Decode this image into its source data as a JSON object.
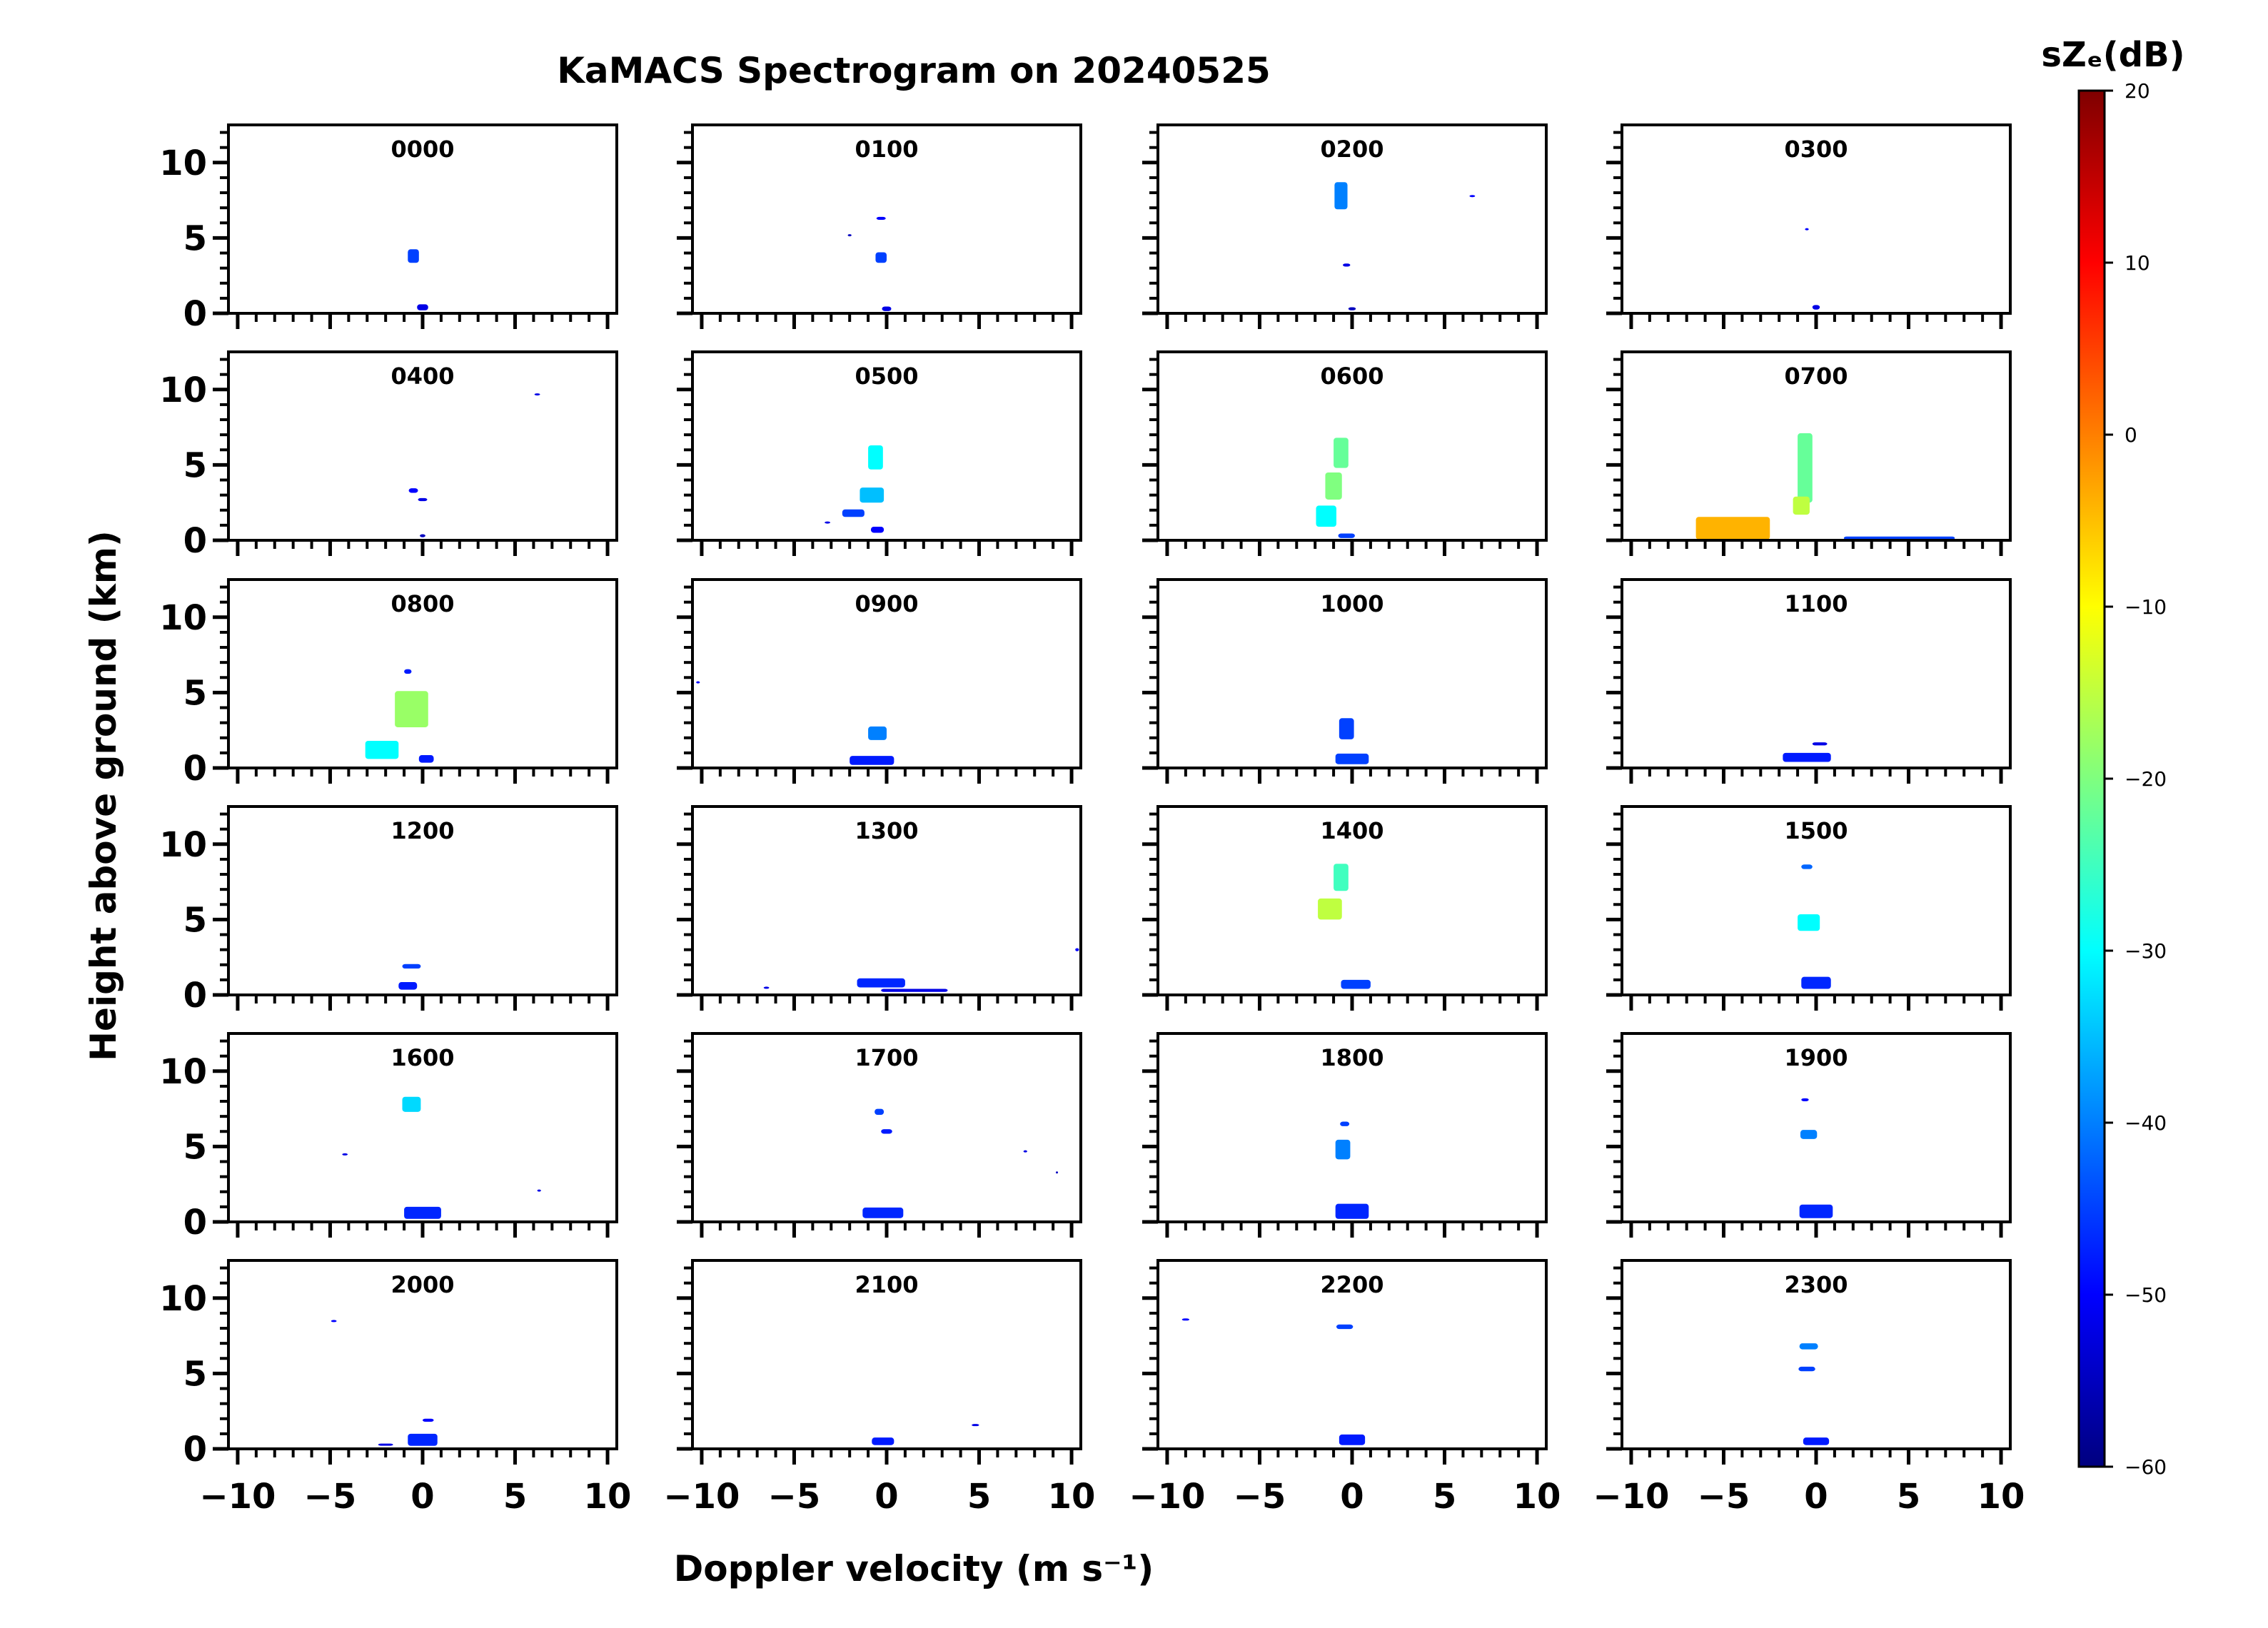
{
  "chart_data": {
    "type": "heatmap",
    "title": "KaMACS Spectrogram on 20240525",
    "xlabel": "Doppler velocity (m s⁻¹)",
    "ylabel": "Height above ground (km)",
    "xlim": [
      -10.5,
      10.5
    ],
    "ylim": [
      0,
      12.5
    ],
    "x_ticks": [
      -10,
      -5,
      0,
      5,
      10
    ],
    "x_tick_labels": [
      "−10",
      "−5",
      "0",
      "5",
      "10"
    ],
    "y_ticks": [
      0,
      5,
      10
    ],
    "y_tick_labels": [
      "0",
      "5",
      "10"
    ],
    "grid": false,
    "layout": "6 rows x 4 columns of hourly panels",
    "colorbar": {
      "label": "sZₑ(dB)",
      "min": -60,
      "max": 20,
      "ticks": [
        20,
        10,
        0,
        -10,
        -20,
        -30,
        -40,
        -50,
        -60
      ],
      "tick_labels": [
        "20",
        "10",
        "0",
        "−10",
        "−20",
        "−30",
        "−40",
        "−50",
        "−60"
      ],
      "colormap": "jet",
      "colors": [
        "#00007f",
        "#0000ff",
        "#007fff",
        "#00ffff",
        "#7fff7f",
        "#ffff00",
        "#ff7f00",
        "#ff0000",
        "#7f0000"
      ]
    },
    "panels": [
      {
        "label": "0000",
        "features": [
          {
            "v": -0.5,
            "h": 3.8,
            "dv": 0.6,
            "dh": 0.9,
            "db": -45
          },
          {
            "v": 0,
            "h": 0.4,
            "dv": 0.6,
            "dh": 0.4,
            "db": -52
          }
        ]
      },
      {
        "label": "0100",
        "features": [
          {
            "v": -0.3,
            "h": 3.7,
            "dv": 0.6,
            "dh": 0.7,
            "db": -45
          },
          {
            "v": -0.3,
            "h": 6.3,
            "dv": 0.5,
            "dh": 0.2,
            "db": -50
          },
          {
            "v": 0,
            "h": 0.3,
            "dv": 0.5,
            "dh": 0.3,
            "db": -52
          },
          {
            "v": -2,
            "h": 5.2,
            "dv": 0.2,
            "dh": 0.1,
            "db": -55
          }
        ]
      },
      {
        "label": "0200",
        "features": [
          {
            "v": -0.6,
            "h": 7.8,
            "dv": 0.7,
            "dh": 1.8,
            "db": -40
          },
          {
            "v": -0.3,
            "h": 3.2,
            "dv": 0.4,
            "dh": 0.2,
            "db": -52
          },
          {
            "v": 0,
            "h": 0.3,
            "dv": 0.4,
            "dh": 0.2,
            "db": -55
          },
          {
            "v": 6.5,
            "h": 7.8,
            "dv": 0.3,
            "dh": 0.1,
            "db": -50
          }
        ]
      },
      {
        "label": "0300",
        "features": [
          {
            "v": -0.5,
            "h": 5.6,
            "dv": 0.2,
            "dh": 0.1,
            "db": -50
          },
          {
            "v": 0,
            "h": 0.4,
            "dv": 0.4,
            "dh": 0.3,
            "db": -52
          }
        ]
      },
      {
        "label": "0400",
        "features": [
          {
            "v": -0.5,
            "h": 3.3,
            "dv": 0.5,
            "dh": 0.3,
            "db": -50
          },
          {
            "v": 0,
            "h": 2.7,
            "dv": 0.5,
            "dh": 0.2,
            "db": -52
          },
          {
            "v": 0,
            "h": 0.3,
            "dv": 0.3,
            "dh": 0.2,
            "db": -55
          },
          {
            "v": 6.2,
            "h": 9.7,
            "dv": 0.3,
            "dh": 0.1,
            "db": -52
          }
        ]
      },
      {
        "label": "0500",
        "features": [
          {
            "v": -0.6,
            "h": 5.5,
            "dv": 0.8,
            "dh": 1.6,
            "db": -30
          },
          {
            "v": -0.8,
            "h": 3.0,
            "dv": 1.3,
            "dh": 1.0,
            "db": -35
          },
          {
            "v": -1.8,
            "h": 1.8,
            "dv": 1.2,
            "dh": 0.5,
            "db": -45
          },
          {
            "v": -0.5,
            "h": 0.7,
            "dv": 0.7,
            "dh": 0.4,
            "db": -50
          },
          {
            "v": -3.2,
            "h": 1.2,
            "dv": 0.3,
            "dh": 0.1,
            "db": -52
          }
        ]
      },
      {
        "label": "0600",
        "features": [
          {
            "v": -0.6,
            "h": 5.8,
            "dv": 0.8,
            "dh": 2.0,
            "db": -22
          },
          {
            "v": -1.0,
            "h": 3.6,
            "dv": 0.9,
            "dh": 1.8,
            "db": -20
          },
          {
            "v": -1.4,
            "h": 1.6,
            "dv": 1.1,
            "dh": 1.4,
            "db": -30
          },
          {
            "v": -0.3,
            "h": 0.3,
            "dv": 0.9,
            "dh": 0.3,
            "db": -45
          }
        ]
      },
      {
        "label": "0700",
        "features": [
          {
            "v": -0.6,
            "h": 4.8,
            "dv": 0.8,
            "dh": 4.6,
            "db": -22
          },
          {
            "v": -0.8,
            "h": 2.3,
            "dv": 0.9,
            "dh": 1.2,
            "db": -15
          },
          {
            "v": -4.5,
            "h": 0.8,
            "dv": 4.0,
            "dh": 1.5,
            "db": -4
          },
          {
            "v": 4.5,
            "h": 0.15,
            "dv": 6.0,
            "dh": 0.2,
            "db": -45
          }
        ]
      },
      {
        "label": "0800",
        "features": [
          {
            "v": -0.6,
            "h": 3.9,
            "dv": 1.8,
            "dh": 2.4,
            "db": -18
          },
          {
            "v": -2.2,
            "h": 1.2,
            "dv": 1.8,
            "dh": 1.2,
            "db": -30
          },
          {
            "v": -0.8,
            "h": 6.4,
            "dv": 0.4,
            "dh": 0.3,
            "db": -48
          },
          {
            "v": 0.2,
            "h": 0.6,
            "dv": 0.8,
            "dh": 0.5,
            "db": -48
          }
        ]
      },
      {
        "label": "0900",
        "features": [
          {
            "v": -0.5,
            "h": 2.3,
            "dv": 1.0,
            "dh": 0.9,
            "db": -40
          },
          {
            "v": -0.8,
            "h": 0.5,
            "dv": 2.4,
            "dh": 0.6,
            "db": -48
          },
          {
            "v": -10.2,
            "h": 5.7,
            "dv": 0.2,
            "dh": 0.1,
            "db": -50
          }
        ]
      },
      {
        "label": "1000",
        "features": [
          {
            "v": -0.3,
            "h": 2.6,
            "dv": 0.8,
            "dh": 1.4,
            "db": -45
          },
          {
            "v": 0,
            "h": 0.6,
            "dv": 1.8,
            "dh": 0.7,
            "db": -45
          }
        ]
      },
      {
        "label": "1100",
        "features": [
          {
            "v": -0.5,
            "h": 0.7,
            "dv": 2.6,
            "dh": 0.6,
            "db": -48
          },
          {
            "v": 0.2,
            "h": 1.6,
            "dv": 0.8,
            "dh": 0.2,
            "db": -52
          }
        ]
      },
      {
        "label": "1200",
        "features": [
          {
            "v": -0.6,
            "h": 1.9,
            "dv": 1.0,
            "dh": 0.3,
            "db": -45
          },
          {
            "v": -0.8,
            "h": 0.6,
            "dv": 1.0,
            "dh": 0.5,
            "db": -48
          }
        ]
      },
      {
        "label": "1300",
        "features": [
          {
            "v": -0.3,
            "h": 0.8,
            "dv": 2.6,
            "dh": 0.6,
            "db": -47
          },
          {
            "v": 1.5,
            "h": 0.3,
            "dv": 3.6,
            "dh": 0.2,
            "db": -52
          },
          {
            "v": -6.5,
            "h": 0.5,
            "dv": 0.3,
            "dh": 0.1,
            "db": -52
          },
          {
            "v": 10.3,
            "h": 3.0,
            "dv": 0.2,
            "dh": 0.2,
            "db": -50
          }
        ]
      },
      {
        "label": "1400",
        "features": [
          {
            "v": -0.6,
            "h": 7.8,
            "dv": 0.8,
            "dh": 1.8,
            "db": -25
          },
          {
            "v": -1.2,
            "h": 5.7,
            "dv": 1.3,
            "dh": 1.4,
            "db": -15
          },
          {
            "v": 0.2,
            "h": 0.7,
            "dv": 1.6,
            "dh": 0.6,
            "db": -45
          }
        ]
      },
      {
        "label": "1500",
        "features": [
          {
            "v": -0.4,
            "h": 4.8,
            "dv": 1.2,
            "dh": 1.1,
            "db": -30
          },
          {
            "v": -0.5,
            "h": 8.5,
            "dv": 0.6,
            "dh": 0.3,
            "db": -42
          },
          {
            "v": 0,
            "h": 0.8,
            "dv": 1.6,
            "dh": 0.8,
            "db": -47
          }
        ]
      },
      {
        "label": "1600",
        "features": [
          {
            "v": -0.6,
            "h": 7.8,
            "dv": 1.0,
            "dh": 1.0,
            "db": -33
          },
          {
            "v": 0,
            "h": 0.6,
            "dv": 2.0,
            "dh": 0.8,
            "db": -47
          },
          {
            "v": -4.2,
            "h": 4.5,
            "dv": 0.3,
            "dh": 0.1,
            "db": -52
          },
          {
            "v": 6.3,
            "h": 2.1,
            "dv": 0.2,
            "dh": 0.1,
            "db": -52
          }
        ]
      },
      {
        "label": "1700",
        "features": [
          {
            "v": -0.4,
            "h": 7.3,
            "dv": 0.5,
            "dh": 0.4,
            "db": -45
          },
          {
            "v": 0,
            "h": 6.0,
            "dv": 0.6,
            "dh": 0.3,
            "db": -48
          },
          {
            "v": -0.2,
            "h": 0.6,
            "dv": 2.2,
            "dh": 0.7,
            "db": -47
          },
          {
            "v": 7.5,
            "h": 4.7,
            "dv": 0.2,
            "dh": 0.1,
            "db": -52
          },
          {
            "v": 9.2,
            "h": 3.3,
            "dv": 0.1,
            "dh": 0.1,
            "db": -55
          }
        ]
      },
      {
        "label": "1800",
        "features": [
          {
            "v": -0.5,
            "h": 4.8,
            "dv": 0.8,
            "dh": 1.3,
            "db": -40
          },
          {
            "v": -0.4,
            "h": 6.5,
            "dv": 0.5,
            "dh": 0.3,
            "db": -45
          },
          {
            "v": 0,
            "h": 0.7,
            "dv": 1.8,
            "dh": 1.0,
            "db": -47
          }
        ]
      },
      {
        "label": "1900",
        "features": [
          {
            "v": -0.4,
            "h": 5.8,
            "dv": 0.9,
            "dh": 0.6,
            "db": -40
          },
          {
            "v": -0.6,
            "h": 8.1,
            "dv": 0.4,
            "dh": 0.2,
            "db": -50
          },
          {
            "v": 0,
            "h": 0.7,
            "dv": 1.8,
            "dh": 0.9,
            "db": -47
          }
        ]
      },
      {
        "label": "2000",
        "features": [
          {
            "v": 0,
            "h": 0.6,
            "dv": 1.6,
            "dh": 0.8,
            "db": -47
          },
          {
            "v": 0.3,
            "h": 1.9,
            "dv": 0.6,
            "dh": 0.2,
            "db": -50
          },
          {
            "v": -4.8,
            "h": 8.5,
            "dv": 0.3,
            "dh": 0.1,
            "db": -50
          },
          {
            "v": -2,
            "h": 0.3,
            "dv": 0.8,
            "dh": 0.1,
            "db": -52
          }
        ]
      },
      {
        "label": "2100",
        "features": [
          {
            "v": -0.2,
            "h": 0.5,
            "dv": 1.2,
            "dh": 0.5,
            "db": -48
          },
          {
            "v": 4.8,
            "h": 1.6,
            "dv": 0.4,
            "dh": 0.1,
            "db": -52
          }
        ]
      },
      {
        "label": "2200",
        "features": [
          {
            "v": -0.4,
            "h": 8.1,
            "dv": 0.9,
            "dh": 0.3,
            "db": -45
          },
          {
            "v": 0,
            "h": 0.6,
            "dv": 1.4,
            "dh": 0.7,
            "db": -48
          },
          {
            "v": -9.0,
            "h": 8.6,
            "dv": 0.4,
            "dh": 0.1,
            "db": -50
          }
        ]
      },
      {
        "label": "2300",
        "features": [
          {
            "v": -0.4,
            "h": 6.8,
            "dv": 1.0,
            "dh": 0.4,
            "db": -40
          },
          {
            "v": -0.5,
            "h": 5.3,
            "dv": 0.9,
            "dh": 0.3,
            "db": -45
          },
          {
            "v": 0,
            "h": 0.5,
            "dv": 1.4,
            "dh": 0.5,
            "db": -48
          }
        ]
      }
    ]
  }
}
